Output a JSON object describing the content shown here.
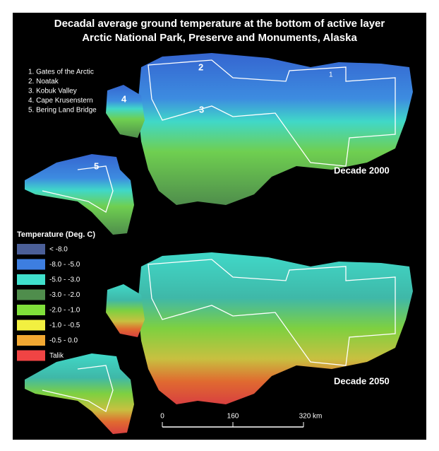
{
  "title": [
    "Decadal average ground temperature at the bottom of active layer",
    "Arctic National Park, Preserve and Monuments, Alaska"
  ],
  "parks": [
    "1. Gates of the Arctic",
    "2. Noatak",
    "3. Kobuk Valley",
    "4. Cape Krusenstern",
    "5. Bering Land Bridge"
  ],
  "map_numbers": [
    "1",
    "2",
    "3",
    "4",
    "5"
  ],
  "panels": [
    "Decade 2000",
    "Decade 2050"
  ],
  "legend": {
    "title": "Temperature (Deg. C)",
    "items": [
      {
        "label": "< -8.0",
        "color": "#4b5f98"
      },
      {
        "label": "-8.0 - -5.0",
        "color": "#3d7ee0"
      },
      {
        "label": "-5.0 - -3.0",
        "color": "#40e0cc"
      },
      {
        "label": "-3.0 - -2.0",
        "color": "#4f8d4c"
      },
      {
        "label": "-2.0 - -1.0",
        "color": "#80e03a"
      },
      {
        "label": "-1.0 - -0.5",
        "color": "#f2f040"
      },
      {
        "label": "-0.5 - 0.0",
        "color": "#f2a832"
      },
      {
        "label": "Talik",
        "color": "#f04444"
      }
    ]
  },
  "scale_bar": [
    "0",
    "160",
    "320 km"
  ]
}
